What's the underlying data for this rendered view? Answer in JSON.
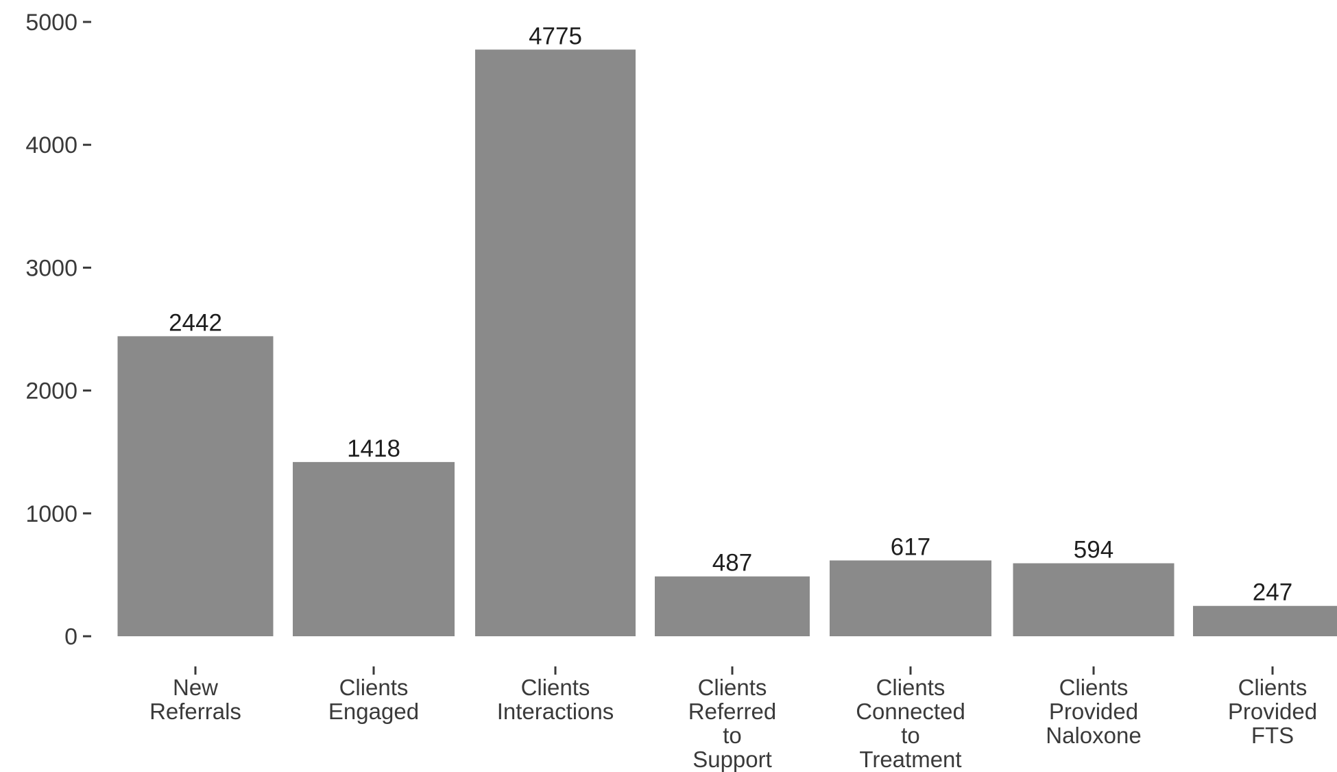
{
  "chart_data": {
    "type": "bar",
    "title": "",
    "xlabel": "",
    "ylabel": "",
    "ylim": [
      0,
      5000
    ],
    "yticks": [
      0,
      1000,
      2000,
      3000,
      4000,
      5000
    ],
    "grid": false,
    "categories": [
      "New Referrals",
      "Clients Engaged",
      "Clients Interactions",
      "Clients Referred to Support",
      "Clients Connected to Treatment",
      "Clients Provided Naloxone",
      "Clients Provided FTS"
    ],
    "category_label_lines": [
      [
        "New",
        "Referrals"
      ],
      [
        "Clients",
        "Engaged"
      ],
      [
        "Clients",
        "Interactions"
      ],
      [
        "Clients",
        "Referred",
        "to",
        "Support"
      ],
      [
        "Clients",
        "Connected",
        "to",
        "Treatment"
      ],
      [
        "Clients",
        "Provided",
        "Naloxone"
      ],
      [
        "Clients",
        "Provided",
        "FTS"
      ]
    ],
    "values": [
      2442,
      1418,
      4775,
      487,
      617,
      594,
      247
    ],
    "colors": {
      "bar": "#8a8a8a",
      "text": "#3a3a3a"
    }
  }
}
